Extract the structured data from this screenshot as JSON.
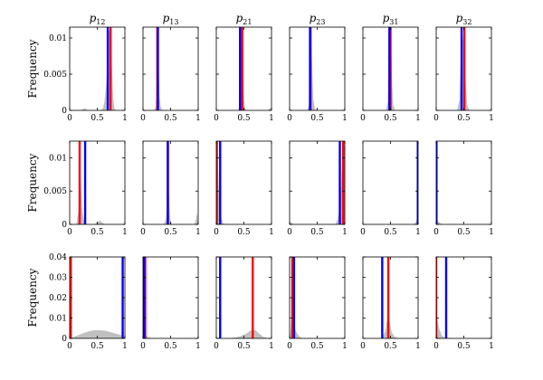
{
  "chart_data": {
    "type": "histogram-grid",
    "column_titles": [
      {
        "base": "p",
        "sub": "12"
      },
      {
        "base": "p",
        "sub": "13"
      },
      {
        "base": "p",
        "sub": "21"
      },
      {
        "base": "p",
        "sub": "23"
      },
      {
        "base": "p",
        "sub": "31"
      },
      {
        "base": "p",
        "sub": "32"
      }
    ],
    "ylabel": "Frequency",
    "xlim": [
      0,
      1
    ],
    "x_ticks": [
      0,
      0.5,
      1
    ],
    "x_tick_labels": [
      "0",
      "0.5",
      "1"
    ],
    "colors": {
      "red": "#ff0000",
      "blue": "#0000ff",
      "density": "#c0c0c0"
    },
    "rows": [
      {
        "ylim": [
          0,
          0.0115
        ],
        "y_ticks": [
          0,
          0.005,
          0.01
        ],
        "y_tick_labels": [
          "0",
          "0.005",
          "0.01"
        ],
        "panels": [
          {
            "red": 0.74,
            "blue": 0.69,
            "density": [
              [
                0.0,
                0
              ],
              [
                0.2,
                0
              ],
              [
                0.24,
                0.0002
              ],
              [
                0.28,
                0.0003
              ],
              [
                0.31,
                0.0001
              ],
              [
                0.36,
                0
              ],
              [
                0.55,
                0
              ],
              [
                0.6,
                0.0002
              ],
              [
                0.63,
                0.0012
              ],
              [
                0.66,
                0.0035
              ],
              [
                0.69,
                0.0075
              ],
              [
                0.71,
                0.0108
              ],
              [
                0.73,
                0.0115
              ],
              [
                0.75,
                0.0095
              ],
              [
                0.77,
                0.005
              ],
              [
                0.79,
                0.0015
              ],
              [
                0.81,
                0.0003
              ],
              [
                0.84,
                0
              ],
              [
                1.0,
                0
              ]
            ]
          },
          {
            "red": 0.26,
            "blue": 0.27,
            "density": [
              [
                0.0,
                0
              ],
              [
                0.2,
                0
              ],
              [
                0.23,
                0.0005
              ],
              [
                0.25,
                0.0035
              ],
              [
                0.265,
                0.0108
              ],
              [
                0.28,
                0.007
              ],
              [
                0.3,
                0.002
              ],
              [
                0.32,
                0.0005
              ],
              [
                0.35,
                0
              ],
              [
                1.0,
                0
              ]
            ]
          },
          {
            "red": 0.47,
            "blue": 0.43,
            "density": [
              [
                0.0,
                0
              ],
              [
                0.4,
                0
              ],
              [
                0.42,
                0.0012
              ],
              [
                0.44,
                0.0085
              ],
              [
                0.46,
                0.0108
              ],
              [
                0.48,
                0.0055
              ],
              [
                0.5,
                0.0015
              ],
              [
                0.52,
                0.0003
              ],
              [
                0.55,
                0
              ],
              [
                0.93,
                0
              ],
              [
                0.96,
                0.0002
              ],
              [
                0.98,
                0.0004
              ],
              [
                1.0,
                0
              ]
            ]
          },
          {
            "red": 0.38,
            "blue": 0.37,
            "density": [
              [
                0.0,
                0
              ],
              [
                0.32,
                0
              ],
              [
                0.35,
                0.0008
              ],
              [
                0.37,
                0.0075
              ],
              [
                0.39,
                0.0108
              ],
              [
                0.41,
                0.006
              ],
              [
                0.43,
                0.0015
              ],
              [
                0.46,
                0.0002
              ],
              [
                0.5,
                0
              ],
              [
                1.0,
                0
              ]
            ]
          },
          {
            "red": 0.5,
            "blue": 0.48,
            "density": [
              [
                0.0,
                0
              ],
              [
                0.42,
                0
              ],
              [
                0.45,
                0.0012
              ],
              [
                0.47,
                0.008
              ],
              [
                0.49,
                0.0108
              ],
              [
                0.51,
                0.0095
              ],
              [
                0.53,
                0.004
              ],
              [
                0.55,
                0.0008
              ],
              [
                0.58,
                0
              ],
              [
                1.0,
                0
              ]
            ]
          },
          {
            "red": 0.51,
            "blue": 0.46,
            "density": [
              [
                0.0,
                0
              ],
              [
                0.38,
                0
              ],
              [
                0.42,
                0.0015
              ],
              [
                0.44,
                0.006
              ],
              [
                0.47,
                0.0108
              ],
              [
                0.5,
                0.009
              ],
              [
                0.53,
                0.004
              ],
              [
                0.56,
                0.0008
              ],
              [
                0.6,
                0
              ],
              [
                1.0,
                0
              ]
            ]
          }
        ]
      },
      {
        "ylim": [
          0,
          0.0125
        ],
        "y_ticks": [
          0,
          0.005,
          0.01
        ],
        "y_tick_labels": [
          "0",
          "0.005",
          "0.01"
        ],
        "panels": [
          {
            "red": 0.18,
            "blue": 0.28,
            "density": [
              [
                0.0,
                0
              ],
              [
                0.12,
                0
              ],
              [
                0.16,
                0.002
              ],
              [
                0.18,
                0.012
              ],
              [
                0.2,
                0.0065
              ],
              [
                0.23,
                0.002
              ],
              [
                0.26,
                0.0005
              ],
              [
                0.3,
                0
              ],
              [
                0.45,
                0
              ],
              [
                0.5,
                0.0003
              ],
              [
                0.55,
                0.0006
              ],
              [
                0.6,
                0.0002
              ],
              [
                0.65,
                0
              ],
              [
                1.0,
                0
              ]
            ]
          },
          {
            "red": 0.45,
            "blue": 0.45,
            "density": [
              [
                0.0,
                0
              ],
              [
                0.38,
                0
              ],
              [
                0.42,
                0.001
              ],
              [
                0.44,
                0.006
              ],
              [
                0.45,
                0.0115
              ],
              [
                0.47,
                0.005
              ],
              [
                0.49,
                0.001
              ],
              [
                0.52,
                0
              ],
              [
                0.93,
                0
              ],
              [
                0.96,
                0.0008
              ],
              [
                0.98,
                0.0018
              ],
              [
                1.0,
                0
              ]
            ]
          },
          {
            "red": 0.01,
            "blue": 0.07,
            "density": [
              [
                0.0,
                0.0118
              ],
              [
                0.02,
                0.011
              ],
              [
                0.05,
                0.004
              ],
              [
                0.08,
                0.0012
              ],
              [
                0.12,
                0.0002
              ],
              [
                0.18,
                0
              ],
              [
                1.0,
                0
              ]
            ]
          },
          {
            "red": 0.97,
            "blue": 0.91,
            "density": [
              [
                0.0,
                0.0004
              ],
              [
                0.04,
                0.0002
              ],
              [
                0.08,
                0
              ],
              [
                0.83,
                0
              ],
              [
                0.87,
                0.0008
              ],
              [
                0.9,
                0.002
              ],
              [
                0.93,
                0.0055
              ],
              [
                0.96,
                0.011
              ],
              [
                0.98,
                0.0118
              ],
              [
                1.0,
                0.0118
              ]
            ]
          },
          {
            "red": 0.995,
            "blue": 0.995,
            "density": [
              [
                0.0,
                0
              ],
              [
                0.9,
                0
              ],
              [
                0.95,
                0.0002
              ],
              [
                0.98,
                0.0008
              ],
              [
                1.0,
                0.0012
              ]
            ]
          },
          {
            "red": 0.005,
            "blue": 0.005,
            "density": [
              [
                0.0,
                0.0012
              ],
              [
                0.03,
                0.0005
              ],
              [
                0.07,
                0.0002
              ],
              [
                0.12,
                0
              ],
              [
                1.0,
                0
              ]
            ]
          }
        ]
      },
      {
        "ylim": [
          0,
          0.04
        ],
        "y_ticks": [
          0,
          0.01,
          0.02,
          0.03,
          0.04
        ],
        "y_tick_labels": [
          "0",
          "0.01",
          "0.02",
          "0.03",
          "0.04"
        ],
        "panels": [
          {
            "red": 0.02,
            "blue": 0.96,
            "density": [
              [
                0.0,
                0
              ],
              [
                0.05,
                0.0005
              ],
              [
                0.15,
                0.0015
              ],
              [
                0.25,
                0.0026
              ],
              [
                0.35,
                0.0035
              ],
              [
                0.45,
                0.004
              ],
              [
                0.55,
                0.004
              ],
              [
                0.65,
                0.0037
              ],
              [
                0.75,
                0.003
              ],
              [
                0.85,
                0.0022
              ],
              [
                0.95,
                0.0015
              ],
              [
                1.0,
                0.001
              ]
            ]
          },
          {
            "red": 0.04,
            "blue": 0.02,
            "density": [
              [
                0.0,
                0.008
              ],
              [
                0.01,
                0.0065
              ],
              [
                0.03,
                0.0035
              ],
              [
                0.06,
                0.0015
              ],
              [
                0.1,
                0.0005
              ],
              [
                0.15,
                0
              ],
              [
                1.0,
                0
              ]
            ]
          },
          {
            "red": 0.66,
            "blue": 0.07,
            "density": [
              [
                0.0,
                0
              ],
              [
                0.2,
                0
              ],
              [
                0.3,
                0.0003
              ],
              [
                0.4,
                0.0008
              ],
              [
                0.5,
                0.0018
              ],
              [
                0.58,
                0.003
              ],
              [
                0.63,
                0.004
              ],
              [
                0.68,
                0.0043
              ],
              [
                0.72,
                0.0037
              ],
              [
                0.78,
                0.0022
              ],
              [
                0.85,
                0.0008
              ],
              [
                0.92,
                0.0002
              ],
              [
                1.0,
                0
              ]
            ]
          },
          {
            "red": 0.05,
            "blue": 0.08,
            "density": [
              [
                0.0,
                0
              ],
              [
                0.01,
                0.002
              ],
              [
                0.03,
                0.008
              ],
              [
                0.05,
                0.011
              ],
              [
                0.08,
                0.007
              ],
              [
                0.12,
                0.003
              ],
              [
                0.18,
                0.0008
              ],
              [
                0.25,
                0
              ],
              [
                1.0,
                0
              ]
            ]
          },
          {
            "red": 0.46,
            "blue": 0.35,
            "density": [
              [
                0.0,
                0
              ],
              [
                0.3,
                0
              ],
              [
                0.36,
                0.0008
              ],
              [
                0.41,
                0.004
              ],
              [
                0.45,
                0.0115
              ],
              [
                0.48,
                0.0085
              ],
              [
                0.52,
                0.003
              ],
              [
                0.58,
                0.0008
              ],
              [
                0.65,
                0
              ],
              [
                1.0,
                0
              ]
            ]
          },
          {
            "red": 0.0,
            "blue": 0.18,
            "density": [
              [
                0.0,
                0.012
              ],
              [
                0.02,
                0.0095
              ],
              [
                0.05,
                0.005
              ],
              [
                0.1,
                0.0015
              ],
              [
                0.15,
                0.0005
              ],
              [
                0.25,
                0.0002
              ],
              [
                0.3,
                0
              ],
              [
                1.0,
                0
              ]
            ]
          }
        ]
      }
    ]
  }
}
